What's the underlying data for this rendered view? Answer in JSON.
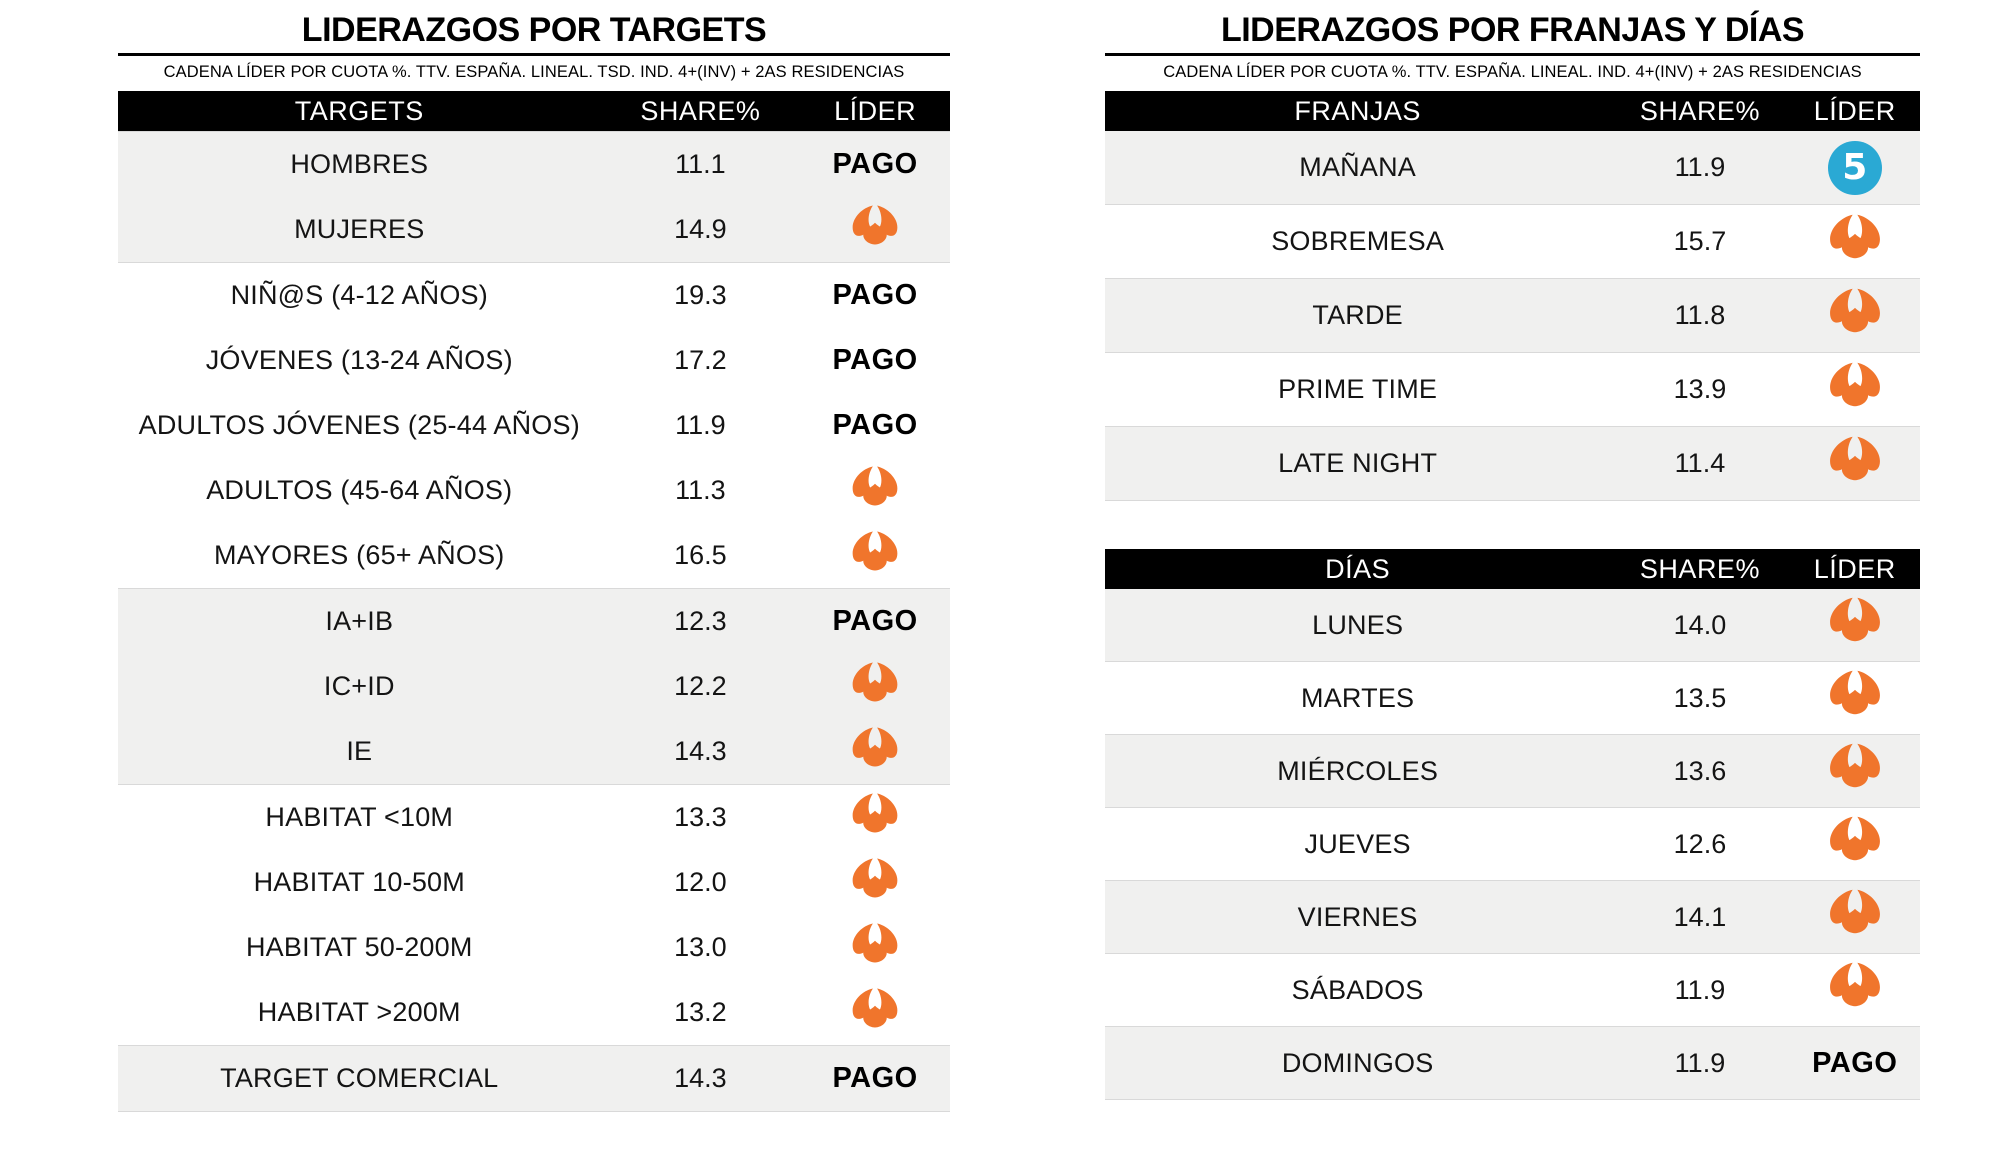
{
  "left_panel": {
    "title": "LIDERAZGOS POR TARGETS",
    "subtitle": "CADENA LÍDER POR CUOTA %. TTV. ESPAÑA. LINEAL. TSD. IND. 4+(INV) + 2AS RESIDENCIAS"
  },
  "right_panel": {
    "title": "LIDERAZGOS POR FRANJAS Y DÍAS",
    "subtitle": "CADENA LÍDER POR CUOTA %. TTV. ESPAÑA. LINEAL. IND. 4+(INV) + 2AS RESIDENCIAS"
  },
  "leaders": {
    "pago": {
      "label": "PAGO"
    },
    "antena3": {
      "icon_name": "antena3-icon",
      "color": "#F0752C"
    },
    "telecinco": {
      "icon_name": "telecinco-icon",
      "color": "#2AA9D4",
      "glyph": "5"
    }
  },
  "colors": {
    "header_bg": "#000000",
    "header_text": "#FFFFFF",
    "row_shade": "#F0F0EF",
    "separator": "#D9D9D9",
    "text": "#141414",
    "antena3_orange": "#F0752C",
    "telecinco_blue": "#2AA9D4"
  },
  "chart_data": [
    {
      "type": "table",
      "title": "LIDERAZGOS POR TARGETS",
      "columns": [
        "TARGETS",
        "SHARE%",
        "LÍDER"
      ],
      "rows": [
        {
          "label": "HOMBRES",
          "share": 11.1,
          "share_display": "11.1",
          "leader": "pago"
        },
        {
          "label": "MUJERES",
          "share": 14.9,
          "share_display": "14.9",
          "leader": "antena3"
        },
        {
          "label": "NIÑ@S (4-12 AÑOS)",
          "share": 19.3,
          "share_display": "19.3",
          "leader": "pago"
        },
        {
          "label": "JÓVENES (13-24 AÑOS)",
          "share": 17.2,
          "share_display": "17.2",
          "leader": "pago"
        },
        {
          "label": "ADULTOS JÓVENES (25-44 AÑOS)",
          "share": 11.9,
          "share_display": "11.9",
          "leader": "pago"
        },
        {
          "label": "ADULTOS (45-64 AÑOS)",
          "share": 11.3,
          "share_display": "11.3",
          "leader": "antena3"
        },
        {
          "label": "MAYORES (65+ AÑOS)",
          "share": 16.5,
          "share_display": "16.5",
          "leader": "antena3"
        },
        {
          "label": "IA+IB",
          "share": 12.3,
          "share_display": "12.3",
          "leader": "pago"
        },
        {
          "label": "IC+ID",
          "share": 12.2,
          "share_display": "12.2",
          "leader": "antena3"
        },
        {
          "label": "IE",
          "share": 14.3,
          "share_display": "14.3",
          "leader": "antena3"
        },
        {
          "label": "HABITAT <10M",
          "share": 13.3,
          "share_display": "13.3",
          "leader": "antena3"
        },
        {
          "label": "HABITAT 10-50M",
          "share": 12.0,
          "share_display": "12.0",
          "leader": "antena3"
        },
        {
          "label": "HABITAT 50-200M",
          "share": 13.0,
          "share_display": "13.0",
          "leader": "antena3"
        },
        {
          "label": "HABITAT >200M",
          "share": 13.2,
          "share_display": "13.2",
          "leader": "antena3"
        },
        {
          "label": "TARGET COMERCIAL",
          "share": 14.3,
          "share_display": "14.3",
          "leader": "pago"
        }
      ]
    },
    {
      "type": "table",
      "title": "FRANJAS",
      "columns": [
        "FRANJAS",
        "SHARE%",
        "LÍDER"
      ],
      "rows": [
        {
          "label": "MAÑANA",
          "share": 11.9,
          "share_display": "11.9",
          "leader": "telecinco"
        },
        {
          "label": "SOBREMESA",
          "share": 15.7,
          "share_display": "15.7",
          "leader": "antena3"
        },
        {
          "label": "TARDE",
          "share": 11.8,
          "share_display": "11.8",
          "leader": "antena3"
        },
        {
          "label": "PRIME TIME",
          "share": 13.9,
          "share_display": "13.9",
          "leader": "antena3"
        },
        {
          "label": "LATE NIGHT",
          "share": 11.4,
          "share_display": "11.4",
          "leader": "antena3"
        }
      ]
    },
    {
      "type": "table",
      "title": "DÍAS",
      "columns": [
        "DÍAS",
        "SHARE%",
        "LÍDER"
      ],
      "rows": [
        {
          "label": "LUNES",
          "share": 14.0,
          "share_display": "14.0",
          "leader": "antena3"
        },
        {
          "label": "MARTES",
          "share": 13.5,
          "share_display": "13.5",
          "leader": "antena3"
        },
        {
          "label": "MIÉRCOLES",
          "share": 13.6,
          "share_display": "13.6",
          "leader": "antena3"
        },
        {
          "label": "JUEVES",
          "share": 12.6,
          "share_display": "12.6",
          "leader": "antena3"
        },
        {
          "label": "VIERNES",
          "share": 14.1,
          "share_display": "14.1",
          "leader": "antena3"
        },
        {
          "label": "SÁBADOS",
          "share": 11.9,
          "share_display": "11.9",
          "leader": "antena3"
        },
        {
          "label": "DOMINGOS",
          "share": 11.9,
          "share_display": "11.9",
          "leader": "pago"
        }
      ]
    }
  ]
}
